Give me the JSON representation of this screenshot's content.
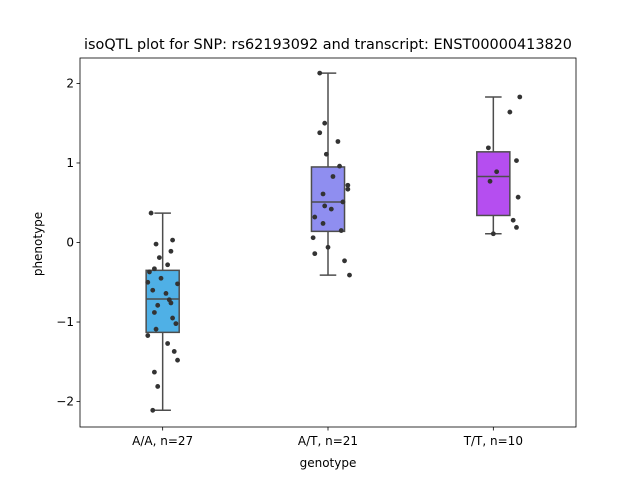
{
  "chart_data": {
    "type": "box",
    "title": "isoQTL plot for SNP: rs62193092 and transcript: ENST00000413820",
    "xlabel": "genotype",
    "ylabel": "phenotype",
    "ylim": [
      -2.32,
      2.32
    ],
    "yticks": [
      -2,
      -1,
      0,
      1,
      2
    ],
    "grid": false,
    "categories": [
      "A/A, n=27",
      "A/T, n=21",
      "T/T, n=10"
    ],
    "colors": [
      "#4fb0e6",
      "#8f8ef0",
      "#b54ef0"
    ],
    "boxes": [
      {
        "whisker_low": -2.11,
        "q1": -1.13,
        "median": -0.71,
        "q3": -0.35,
        "whisker_high": 0.37
      },
      {
        "whisker_low": -0.41,
        "q1": 0.14,
        "median": 0.51,
        "q3": 0.95,
        "whisker_high": 2.13
      },
      {
        "whisker_low": 0.11,
        "q1": 0.34,
        "median": 0.83,
        "q3": 1.14,
        "whisker_high": 1.83
      }
    ],
    "points": [
      [
        {
          "dx": -0.07,
          "y": 0.37
        },
        {
          "dx": 0.06,
          "y": 0.03
        },
        {
          "dx": -0.04,
          "y": -0.02
        },
        {
          "dx": 0.05,
          "y": -0.11
        },
        {
          "dx": -0.02,
          "y": -0.19
        },
        {
          "dx": 0.03,
          "y": -0.28
        },
        {
          "dx": -0.05,
          "y": -0.33
        },
        {
          "dx": -0.08,
          "y": -0.37
        },
        {
          "dx": -0.01,
          "y": -0.45
        },
        {
          "dx": -0.09,
          "y": -0.5
        },
        {
          "dx": 0.09,
          "y": -0.52
        },
        {
          "dx": -0.06,
          "y": -0.6
        },
        {
          "dx": 0.02,
          "y": -0.64
        },
        {
          "dx": 0.04,
          "y": -0.72
        },
        {
          "dx": 0.05,
          "y": -0.76
        },
        {
          "dx": -0.03,
          "y": -0.79
        },
        {
          "dx": -0.05,
          "y": -0.88
        },
        {
          "dx": 0.06,
          "y": -0.95
        },
        {
          "dx": 0.08,
          "y": -1.02
        },
        {
          "dx": -0.04,
          "y": -1.09
        },
        {
          "dx": -0.09,
          "y": -1.17
        },
        {
          "dx": 0.03,
          "y": -1.27
        },
        {
          "dx": 0.07,
          "y": -1.37
        },
        {
          "dx": 0.09,
          "y": -1.48
        },
        {
          "dx": -0.05,
          "y": -1.63
        },
        {
          "dx": -0.03,
          "y": -1.81
        },
        {
          "dx": -0.06,
          "y": -2.11
        }
      ],
      [
        {
          "dx": -0.05,
          "y": 2.13
        },
        {
          "dx": -0.02,
          "y": 1.5
        },
        {
          "dx": -0.05,
          "y": 1.38
        },
        {
          "dx": 0.06,
          "y": 1.27
        },
        {
          "dx": -0.01,
          "y": 1.11
        },
        {
          "dx": 0.07,
          "y": 0.96
        },
        {
          "dx": 0.03,
          "y": 0.83
        },
        {
          "dx": 0.12,
          "y": 0.72
        },
        {
          "dx": 0.12,
          "y": 0.67
        },
        {
          "dx": -0.03,
          "y": 0.61
        },
        {
          "dx": 0.09,
          "y": 0.51
        },
        {
          "dx": -0.02,
          "y": 0.46
        },
        {
          "dx": 0.02,
          "y": 0.42
        },
        {
          "dx": -0.08,
          "y": 0.32
        },
        {
          "dx": -0.03,
          "y": 0.24
        },
        {
          "dx": 0.08,
          "y": 0.15
        },
        {
          "dx": -0.09,
          "y": 0.06
        },
        {
          "dx": 0.0,
          "y": -0.06
        },
        {
          "dx": -0.08,
          "y": -0.14
        },
        {
          "dx": 0.1,
          "y": -0.23
        },
        {
          "dx": 0.13,
          "y": -0.41
        }
      ],
      [
        {
          "dx": 0.16,
          "y": 1.83
        },
        {
          "dx": 0.1,
          "y": 1.64
        },
        {
          "dx": -0.03,
          "y": 1.19
        },
        {
          "dx": 0.14,
          "y": 1.03
        },
        {
          "dx": 0.02,
          "y": 0.89
        },
        {
          "dx": -0.02,
          "y": 0.77
        },
        {
          "dx": 0.15,
          "y": 0.57
        },
        {
          "dx": 0.12,
          "y": 0.28
        },
        {
          "dx": 0.14,
          "y": 0.19
        },
        {
          "dx": 0.0,
          "y": 0.11
        }
      ]
    ]
  }
}
